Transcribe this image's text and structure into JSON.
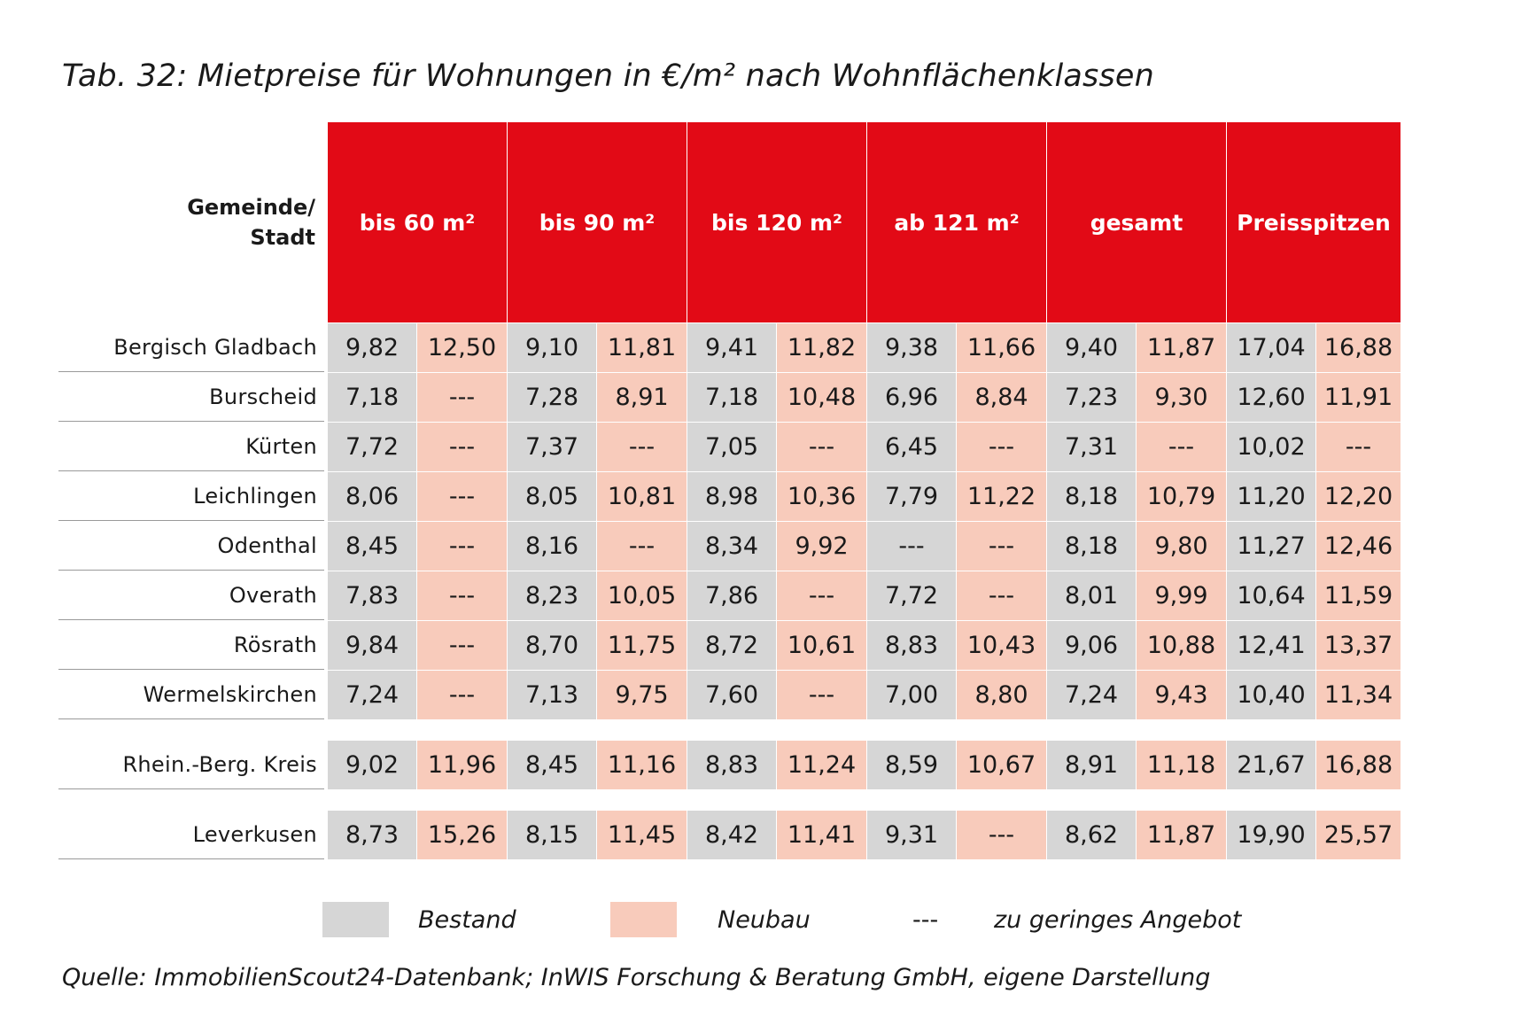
{
  "title": "Tab. 32: Mietpreise für Wohnungen in €/m² nach Wohnflächenklassen",
  "header": {
    "row_label": "Gemeinde/\nStadt",
    "groups": [
      "bis 60 m²",
      "bis 90 m²",
      "bis 120 m²",
      "ab 121 m²",
      "gesamt",
      "Preisspitzen"
    ]
  },
  "rows": [
    {
      "label": "Bergisch Gladbach",
      "values": [
        "9,82",
        "12,50",
        "9,10",
        "11,81",
        "9,41",
        "11,82",
        "9,38",
        "11,66",
        "9,40",
        "11,87",
        "17,04",
        "16,88"
      ]
    },
    {
      "label": "Burscheid",
      "values": [
        "7,18",
        "---",
        "7,28",
        "8,91",
        "7,18",
        "10,48",
        "6,96",
        "8,84",
        "7,23",
        "9,30",
        "12,60",
        "11,91"
      ]
    },
    {
      "label": "Kürten",
      "values": [
        "7,72",
        "---",
        "7,37",
        "---",
        "7,05",
        "---",
        "6,45",
        "---",
        "7,31",
        "---",
        "10,02",
        "---"
      ]
    },
    {
      "label": "Leichlingen",
      "values": [
        "8,06",
        "---",
        "8,05",
        "10,81",
        "8,98",
        "10,36",
        "7,79",
        "11,22",
        "8,18",
        "10,79",
        "11,20",
        "12,20"
      ]
    },
    {
      "label": "Odenthal",
      "values": [
        "8,45",
        "---",
        "8,16",
        "---",
        "8,34",
        "9,92",
        "---",
        "---",
        "8,18",
        "9,80",
        "11,27",
        "12,46"
      ]
    },
    {
      "label": "Overath",
      "values": [
        "7,83",
        "---",
        "8,23",
        "10,05",
        "7,86",
        "---",
        "7,72",
        "---",
        "8,01",
        "9,99",
        "10,64",
        "11,59"
      ]
    },
    {
      "label": "Rösrath",
      "values": [
        "9,84",
        "---",
        "8,70",
        "11,75",
        "8,72",
        "10,61",
        "8,83",
        "10,43",
        "9,06",
        "10,88",
        "12,41",
        "13,37"
      ]
    },
    {
      "label": "Wermelskirchen",
      "values": [
        "7,24",
        "---",
        "7,13",
        "9,75",
        "7,60",
        "---",
        "7,00",
        "8,80",
        "7,24",
        "9,43",
        "10,40",
        "11,34"
      ]
    }
  ],
  "kreis_row": {
    "label": "Rhein.-Berg. Kreis",
    "values": [
      "9,02",
      "11,96",
      "8,45",
      "11,16",
      "8,83",
      "11,24",
      "8,59",
      "10,67",
      "8,91",
      "11,18",
      "21,67",
      "16,88"
    ]
  },
  "leverkusen_row": {
    "label": "Leverkusen",
    "values": [
      "8,73",
      "15,26",
      "8,15",
      "11,45",
      "8,42",
      "11,41",
      "9,31",
      "---",
      "8,62",
      "11,87",
      "19,90",
      "25,57"
    ]
  },
  "legend": {
    "bestand": "Bestand",
    "neubau": "Neubau",
    "dash": "---",
    "dash_text": "zu geringes Angebot",
    "colors": {
      "bestand": "#d6d6d6",
      "neubau": "#f8cbbb",
      "header": "#e20a16"
    }
  },
  "source": "Quelle: ImmobilienScout24-Datenbank; InWIS Forschung & Beratung GmbH, eigene Darstellung"
}
